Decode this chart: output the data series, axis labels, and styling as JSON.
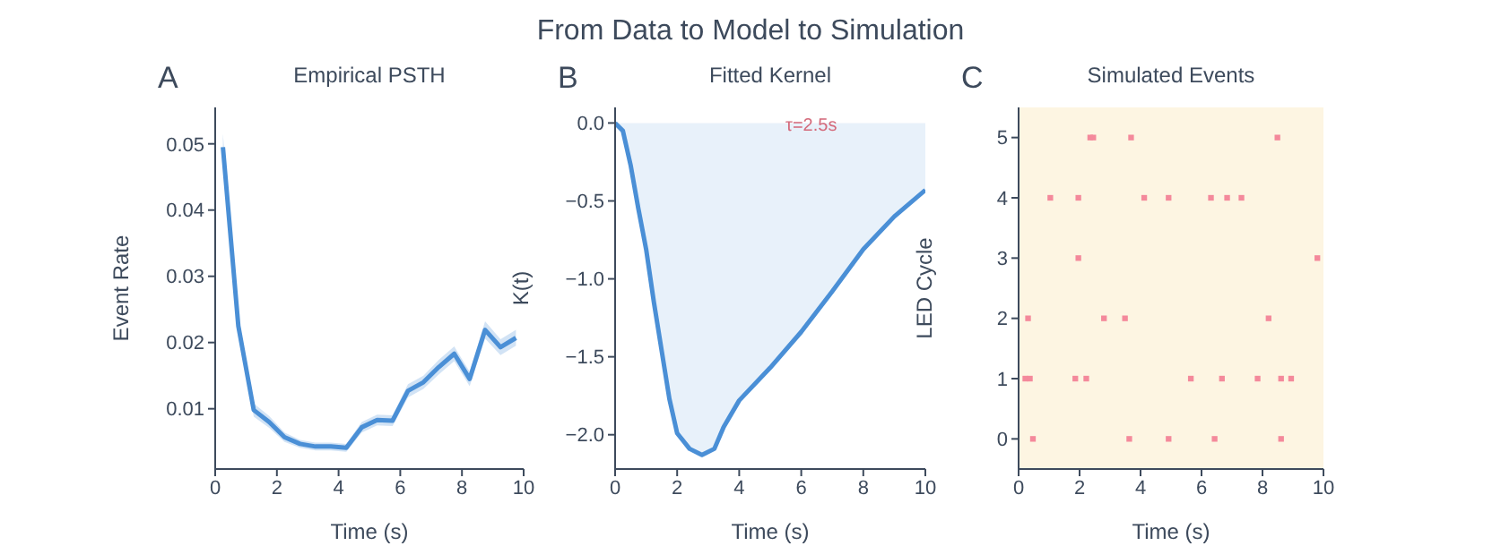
{
  "chart_data": [
    {
      "type": "line",
      "title": "Empirical PSTH",
      "xlabel": "Time (s)",
      "ylabel": "Event Rate",
      "annotations": [
        "A",
        "From Data to Model to Simulation"
      ],
      "x": [
        0.25,
        0.75,
        1.25,
        1.75,
        2.25,
        2.75,
        3.25,
        3.75,
        4.25,
        4.75,
        5.25,
        5.75,
        6.25,
        6.75,
        7.25,
        7.75,
        8.25,
        8.75,
        9.25,
        9.75
      ],
      "series": [
        {
          "color": "#4a8fd6",
          "values": [
            0.0495,
            0.0225,
            0.0098,
            0.008,
            0.0057,
            0.0047,
            0.0043,
            0.0043,
            0.0041,
            0.0072,
            0.0083,
            0.0082,
            0.0127,
            0.014,
            0.0163,
            0.0183,
            0.0145,
            0.0219,
            0.0193,
            0.0207
          ],
          "lower": [
            0.0475,
            0.021,
            0.0088,
            0.0071,
            0.005,
            0.0041,
            0.0037,
            0.0037,
            0.0035,
            0.0064,
            0.0075,
            0.0074,
            0.0117,
            0.013,
            0.0152,
            0.0172,
            0.0134,
            0.0206,
            0.0181,
            0.0195
          ],
          "upper": [
            0.0515,
            0.024,
            0.0108,
            0.0089,
            0.0064,
            0.0053,
            0.0049,
            0.0049,
            0.0047,
            0.008,
            0.0091,
            0.009,
            0.0137,
            0.015,
            0.0174,
            0.0194,
            0.0156,
            0.0232,
            0.0205,
            0.0219
          ]
        }
      ],
      "xlim": [
        0,
        10
      ],
      "xticks": [
        0,
        2,
        4,
        6,
        8,
        10
      ],
      "ylim": [
        0.0009,
        0.0555
      ],
      "yticks": [
        0.01,
        0.02,
        0.03,
        0.04,
        0.05
      ]
    },
    {
      "type": "area",
      "title": "Fitted Kernel",
      "xlabel": "Time (s)",
      "ylabel": "K(t)",
      "annotations": [
        "B",
        "τ=2.5s"
      ],
      "x": [
        0,
        0.25,
        0.5,
        0.75,
        1,
        1.25,
        1.5,
        1.75,
        2,
        2.4,
        2.8,
        3.2,
        3.5,
        4,
        5,
        6,
        7,
        8,
        9,
        10
      ],
      "series": [
        {
          "color": "#4a8fd6",
          "values": [
            0,
            -0.05,
            -0.27,
            -0.55,
            -0.81,
            -1.15,
            -1.46,
            -1.77,
            -1.99,
            -2.09,
            -2.13,
            -2.09,
            -1.95,
            -1.78,
            -1.57,
            -1.34,
            -1.08,
            -0.81,
            -0.6,
            -0.43
          ]
        }
      ],
      "xlim": [
        0,
        10
      ],
      "xticks": [
        0,
        2,
        4,
        6,
        8,
        10
      ],
      "ylim": [
        -2.22,
        0.1
      ],
      "yticks": [
        {
          "value": 0,
          "label": "0.0"
        },
        {
          "value": -0.5,
          "label": "−0.5"
        },
        {
          "value": -1,
          "label": "−1.0"
        },
        {
          "value": -1.5,
          "label": "−1.5"
        },
        {
          "value": -2,
          "label": "−2.0"
        }
      ]
    },
    {
      "type": "scatter",
      "title": "Simulated Events",
      "xlabel": "Time (s)",
      "ylabel": "LED Cycle",
      "annotations": [
        "C"
      ],
      "series": [
        {
          "color": "#f4899b",
          "x": [
            2.35,
            2.45,
            3.69,
            8.49,
            1.04,
            1.96,
            4.12,
            4.92,
            6.31,
            6.84,
            7.31,
            1.96,
            9.8,
            0.31,
            2.8,
            3.49,
            8.2,
            0.22,
            0.37,
            1.86,
            2.22,
            5.65,
            6.67,
            7.84,
            8.61,
            8.94,
            0.47,
            3.63,
            4.92,
            6.43,
            8.61
          ],
          "values": [
            5,
            5,
            5,
            5,
            4,
            4,
            4,
            4,
            4,
            4,
            4,
            3,
            3,
            2,
            2,
            2,
            2,
            1,
            1,
            1,
            1,
            1,
            1,
            1,
            1,
            1,
            0,
            0,
            0,
            0,
            0
          ]
        }
      ],
      "marker": "square",
      "xlim": [
        0,
        10
      ],
      "xticks": [
        0,
        2,
        4,
        6,
        8,
        10
      ],
      "ylim": [
        -0.5,
        5.5
      ],
      "yticks": [
        0,
        1,
        2,
        3,
        4,
        5
      ]
    }
  ]
}
